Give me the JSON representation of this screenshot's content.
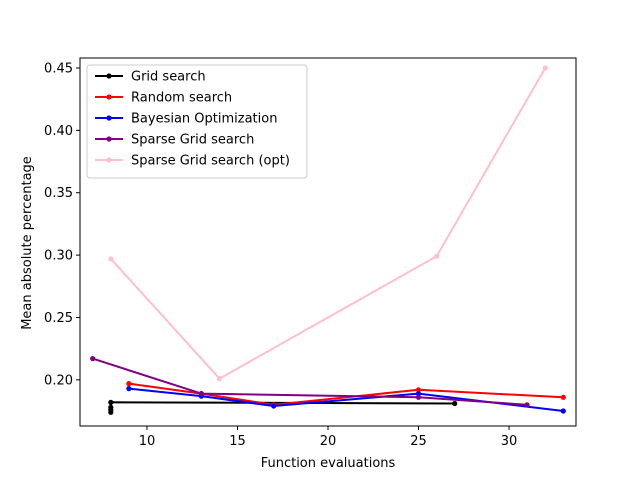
{
  "chart_data": {
    "type": "line",
    "title": "",
    "xlabel": "Function evaluations",
    "ylabel": "Mean absolute percentage",
    "xlim": [
      6.3,
      33.7
    ],
    "ylim": [
      0.163,
      0.458
    ],
    "xticks": [
      10,
      15,
      20,
      25,
      30
    ],
    "yticks": [
      0.2,
      0.25,
      0.3,
      0.35,
      0.4,
      0.45
    ],
    "xtick_labels": [
      "10",
      "15",
      "20",
      "25",
      "30"
    ],
    "ytick_labels": [
      "0.20",
      "0.25",
      "0.30",
      "0.35",
      "0.40",
      "0.45"
    ],
    "grid": false,
    "legend_position": "top-left",
    "series": [
      {
        "name": "Grid search",
        "color": "#000000",
        "x": [
          8,
          8,
          8,
          8,
          27
        ],
        "y": [
          0.174,
          0.176,
          0.178,
          0.182,
          0.181
        ]
      },
      {
        "name": "Random search",
        "color": "#ff0000",
        "x": [
          9,
          13,
          17,
          25,
          33
        ],
        "y": [
          0.197,
          0.189,
          0.18,
          0.192,
          0.186
        ]
      },
      {
        "name": "Bayesian Optimization",
        "color": "#0000ff",
        "x": [
          9,
          13,
          17,
          25,
          33
        ],
        "y": [
          0.193,
          0.187,
          0.179,
          0.189,
          0.175
        ]
      },
      {
        "name": "Sparse Grid search",
        "color": "#800080",
        "x": [
          7,
          13,
          25,
          31
        ],
        "y": [
          0.217,
          0.189,
          0.186,
          0.18
        ]
      },
      {
        "name": "Sparse Grid search (opt)",
        "color": "#ffc0cb",
        "x": [
          8,
          14,
          26,
          32
        ],
        "y": [
          0.297,
          0.201,
          0.299,
          0.45
        ]
      }
    ]
  }
}
